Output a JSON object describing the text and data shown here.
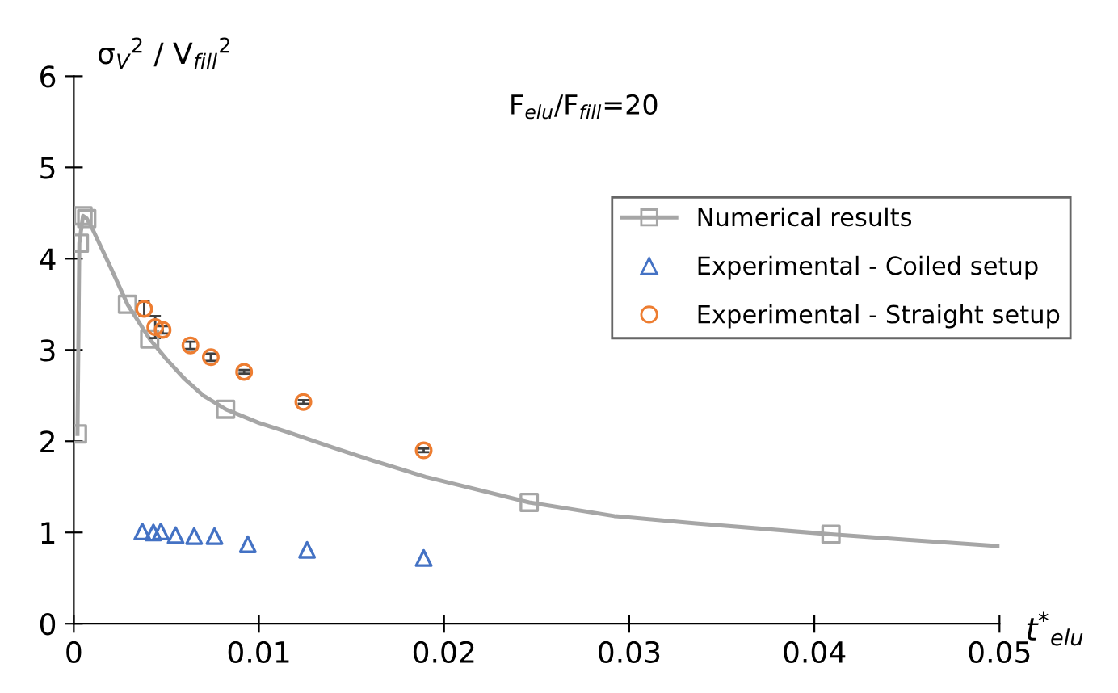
{
  "chart_data": {
    "type": "scatter",
    "ylabel": "σ$_{V}$$^{2}$ / V$_{fill}$$^{2}$",
    "xlabel": "t$^{*}$$_{elu}$",
    "annotations": [
      "F$_{elu}$/F$_{fill}$=20"
    ],
    "xlim": [
      0,
      0.05
    ],
    "xticks": [
      0,
      0.01,
      0.02,
      0.03,
      0.04,
      0.05
    ],
    "ylim": [
      0,
      6
    ],
    "yticks": [
      0,
      1,
      2,
      3,
      4,
      5,
      6
    ],
    "grid": false,
    "legend": "right",
    "series": [
      {
        "type": "line",
        "color": "#a6a6a6",
        "marker": "none",
        "x": [
          0.0002,
          0.0003,
          0.0005,
          0.0007,
          0.001,
          0.002,
          0.0029,
          0.0041,
          0.005,
          0.006,
          0.007,
          0.0082,
          0.01,
          0.0117,
          0.014,
          0.0161,
          0.019,
          0.0246,
          0.0292,
          0.0336,
          0.0409,
          0.045,
          0.05
        ],
        "values": [
          2.08,
          4.17,
          4.47,
          4.44,
          4.33,
          3.9,
          3.5,
          3.12,
          2.9,
          2.68,
          2.5,
          2.35,
          2.2,
          2.09,
          1.93,
          1.79,
          1.61,
          1.33,
          1.18,
          1.1,
          0.98,
          0.92,
          0.85
        ]
      },
      {
        "name": "Numerical results",
        "color": "#a6a6a6",
        "marker": "square",
        "x": [
          0.0002,
          0.0003,
          0.0005,
          0.0007,
          0.0029,
          0.0041,
          0.0082,
          0.0246,
          0.0409
        ],
        "values": [
          2.08,
          4.17,
          4.47,
          4.44,
          3.5,
          3.12,
          2.35,
          1.33,
          0.98
        ]
      },
      {
        "name": "Experimental - Coiled setup",
        "color": "#4472c4",
        "marker": "triangle",
        "x": [
          0.0037,
          0.0043,
          0.0047,
          0.0055,
          0.0065,
          0.0076,
          0.0094,
          0.0126,
          0.0189
        ],
        "values": [
          1.01,
          1.0,
          1.01,
          0.97,
          0.96,
          0.96,
          0.87,
          0.81,
          0.72
        ]
      },
      {
        "name": "Experimental - Straight setup",
        "color": "#ed7d31",
        "marker": "circle",
        "x": [
          0.0038,
          0.0044,
          0.0048,
          0.0063,
          0.0074,
          0.0092,
          0.0124,
          0.0189
        ],
        "values": [
          3.45,
          3.25,
          3.22,
          3.05,
          2.92,
          2.76,
          2.43,
          1.9
        ],
        "errors": [
          0.08,
          0.12,
          0.04,
          0.04,
          0.04,
          0.02,
          0.02,
          0.02
        ]
      }
    ]
  }
}
